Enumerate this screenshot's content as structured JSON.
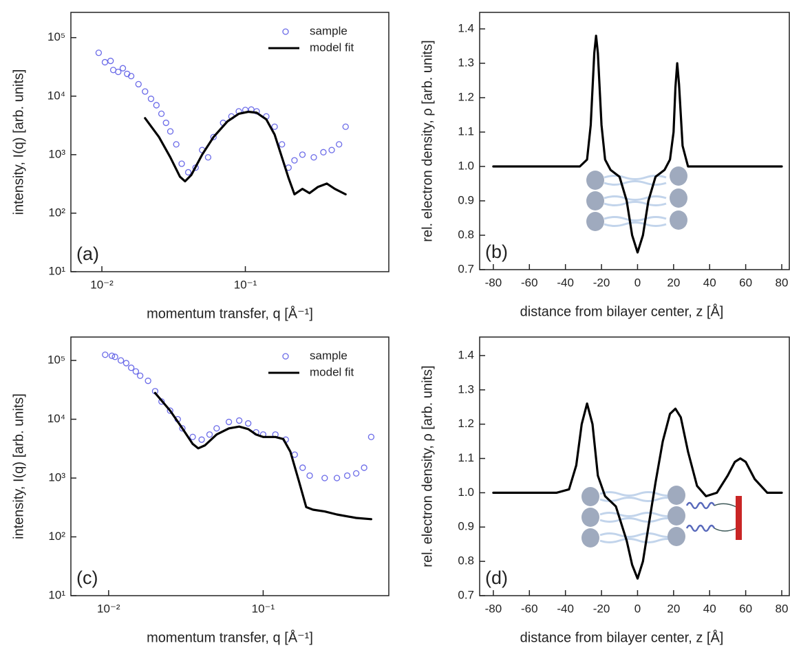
{
  "chart_data": [
    {
      "type": "scatter",
      "panel_label": "(a)",
      "x_label": "momentum transfer, q [Å⁻¹]",
      "y_label": "intensity, I(q) [arb. units]",
      "xscale": "log",
      "yscale": "log",
      "legend": "upper right",
      "xlim": [
        0.00608,
        1.0
      ],
      "ylim": [
        10,
        270000
      ],
      "xticks": [
        {
          "value": 0.01,
          "label": "10⁻²"
        },
        {
          "value": 0.1,
          "label": "10⁻¹"
        }
      ],
      "yticks": [
        {
          "value": 10,
          "label": "10¹"
        },
        {
          "value": 100,
          "label": "10²"
        },
        {
          "value": 1000,
          "label": "10³"
        },
        {
          "value": 10000,
          "label": "10⁴"
        },
        {
          "value": 100000,
          "label": "10⁵"
        }
      ],
      "series": [
        {
          "name": "sample",
          "color": "#6a6ae8",
          "kind": "markers",
          "x": [
            0.0095,
            0.0105,
            0.0115,
            0.012,
            0.013,
            0.014,
            0.015,
            0.016,
            0.018,
            0.02,
            0.022,
            0.024,
            0.026,
            0.028,
            0.03,
            0.033,
            0.036,
            0.04,
            0.045,
            0.05,
            0.055,
            0.06,
            0.07,
            0.08,
            0.09,
            0.1,
            0.11,
            0.12,
            0.14,
            0.16,
            0.18,
            0.2,
            0.22,
            0.25,
            0.3,
            0.35,
            0.4,
            0.45,
            0.5
          ],
          "values": [
            55000,
            38000,
            40000,
            28000,
            26000,
            30000,
            24000,
            22000,
            16000,
            12000,
            9000,
            7000,
            5000,
            3500,
            2500,
            1500,
            700,
            500,
            600,
            1200,
            900,
            2000,
            3500,
            4500,
            5500,
            5800,
            5900,
            5500,
            4500,
            3000,
            1500,
            600,
            800,
            1000,
            900,
            1100,
            1200,
            1500,
            3000
          ]
        },
        {
          "name": "model fit",
          "color": "#000000",
          "kind": "line",
          "x": [
            0.02,
            0.025,
            0.03,
            0.035,
            0.038,
            0.042,
            0.05,
            0.06,
            0.075,
            0.09,
            0.105,
            0.12,
            0.14,
            0.16,
            0.18,
            0.2,
            0.22,
            0.25,
            0.28,
            0.32,
            0.37,
            0.42,
            0.5
          ],
          "values": [
            4200,
            2000,
            900,
            420,
            350,
            450,
            1000,
            2000,
            3700,
            5000,
            5400,
            5200,
            4000,
            2200,
            900,
            400,
            210,
            260,
            220,
            280,
            320,
            260,
            210
          ]
        }
      ]
    },
    {
      "type": "line",
      "panel_label": "(b)",
      "x_label": "distance from bilayer center, z [Å]",
      "y_label": "rel. electron density, ρ [arb. units]",
      "xlim": [
        -87.6,
        84.2
      ],
      "ylim": [
        0.7,
        1.448
      ],
      "xticks": [
        -80,
        -60,
        -40,
        -20,
        0,
        20,
        40,
        60,
        80
      ],
      "yticks": [
        0.7,
        0.8,
        0.9,
        {
          "value": 1,
          "label": "1.0"
        },
        1.1,
        1.2,
        1.3,
        1.4
      ],
      "series": [
        {
          "color": "#000000",
          "kind": "line",
          "x": [
            -80,
            -40,
            -32,
            -28,
            -26,
            -24,
            -23,
            -22,
            -20,
            -18,
            -15,
            -10,
            -6,
            -3,
            0,
            3,
            6,
            10,
            15,
            18,
            20,
            21,
            22,
            23,
            25,
            28,
            32,
            40,
            80
          ],
          "values": [
            1,
            1,
            1,
            1.02,
            1.12,
            1.33,
            1.38,
            1.33,
            1.12,
            1.02,
            0.99,
            0.97,
            0.9,
            0.8,
            0.75,
            0.8,
            0.9,
            0.97,
            0.99,
            1.02,
            1.1,
            1.23,
            1.3,
            1.24,
            1.06,
            1,
            1,
            1,
            1
          ]
        }
      ]
    },
    {
      "type": "scatter",
      "panel_label": "(c)",
      "x_label": "momentum transfer, q [Å⁻¹]",
      "y_label": "intensity, I(q) [arb. units]",
      "xscale": "log",
      "yscale": "log",
      "legend": "upper right",
      "xlim": [
        0.0057,
        0.65
      ],
      "ylim": [
        10,
        250000
      ],
      "xticks": [
        {
          "value": 0.01,
          "label": "10⁻²"
        },
        {
          "value": 0.1,
          "label": "10⁻¹"
        }
      ],
      "yticks": [
        {
          "value": 10,
          "label": "10¹"
        },
        {
          "value": 100,
          "label": "10²"
        },
        {
          "value": 1000,
          "label": "10³"
        },
        {
          "value": 10000,
          "label": "10⁴"
        },
        {
          "value": 100000,
          "label": "10⁵"
        }
      ],
      "series": [
        {
          "name": "sample",
          "color": "#6a6ae8",
          "kind": "markers",
          "x": [
            0.0095,
            0.0105,
            0.011,
            0.012,
            0.013,
            0.014,
            0.015,
            0.016,
            0.018,
            0.02,
            0.022,
            0.025,
            0.028,
            0.03,
            0.035,
            0.04,
            0.045,
            0.05,
            0.06,
            0.07,
            0.08,
            0.09,
            0.1,
            0.12,
            0.14,
            0.16,
            0.18,
            0.2,
            0.25,
            0.3,
            0.35,
            0.4,
            0.45,
            0.5
          ],
          "values": [
            125000,
            120000,
            115000,
            100000,
            90000,
            75000,
            65000,
            55000,
            45000,
            30000,
            20000,
            14000,
            10000,
            7000,
            5000,
            4500,
            5500,
            7000,
            9000,
            9500,
            8500,
            6000,
            5500,
            5500,
            4500,
            2500,
            1500,
            1100,
            1000,
            1000,
            1100,
            1200,
            1500,
            5000
          ]
        },
        {
          "name": "model fit",
          "color": "#000000",
          "kind": "line",
          "x": [
            0.02,
            0.025,
            0.03,
            0.035,
            0.038,
            0.042,
            0.05,
            0.06,
            0.07,
            0.08,
            0.09,
            0.1,
            0.12,
            0.135,
            0.15,
            0.17,
            0.19,
            0.21,
            0.25,
            0.3,
            0.4,
            0.5
          ],
          "values": [
            28000,
            14000,
            7000,
            3800,
            3200,
            3600,
            5500,
            7000,
            7500,
            6800,
            5500,
            5000,
            5000,
            4600,
            2800,
            900,
            320,
            290,
            270,
            240,
            210,
            200
          ]
        }
      ]
    },
    {
      "type": "line",
      "panel_label": "(d)",
      "x_label": "distance from bilayer center, z [Å]",
      "y_label": "rel. electron density, ρ [arb. units]",
      "xlim": [
        -87.6,
        84.2
      ],
      "ylim": [
        0.7,
        1.454
      ],
      "xticks": [
        -80,
        -60,
        -40,
        -20,
        0,
        20,
        40,
        60,
        80
      ],
      "yticks": [
        0.7,
        0.8,
        0.9,
        {
          "value": 1,
          "label": "1.0"
        },
        1.1,
        1.2,
        1.3,
        1.4
      ],
      "series": [
        {
          "color": "#000000",
          "kind": "line",
          "x": [
            -80,
            -45,
            -38,
            -34,
            -31,
            -28,
            -25,
            -22,
            -18,
            -12,
            -6,
            -3,
            0,
            3,
            6,
            10,
            14,
            18,
            21,
            24,
            28,
            33,
            38,
            44,
            50,
            54,
            57,
            60,
            65,
            72,
            80
          ],
          "values": [
            1,
            1,
            1.01,
            1.08,
            1.2,
            1.26,
            1.2,
            1.05,
            0.99,
            0.96,
            0.86,
            0.79,
            0.75,
            0.8,
            0.9,
            1.03,
            1.15,
            1.23,
            1.245,
            1.22,
            1.12,
            1.02,
            0.99,
            1,
            1.05,
            1.09,
            1.1,
            1.09,
            1.04,
            1,
            1
          ]
        }
      ]
    }
  ]
}
